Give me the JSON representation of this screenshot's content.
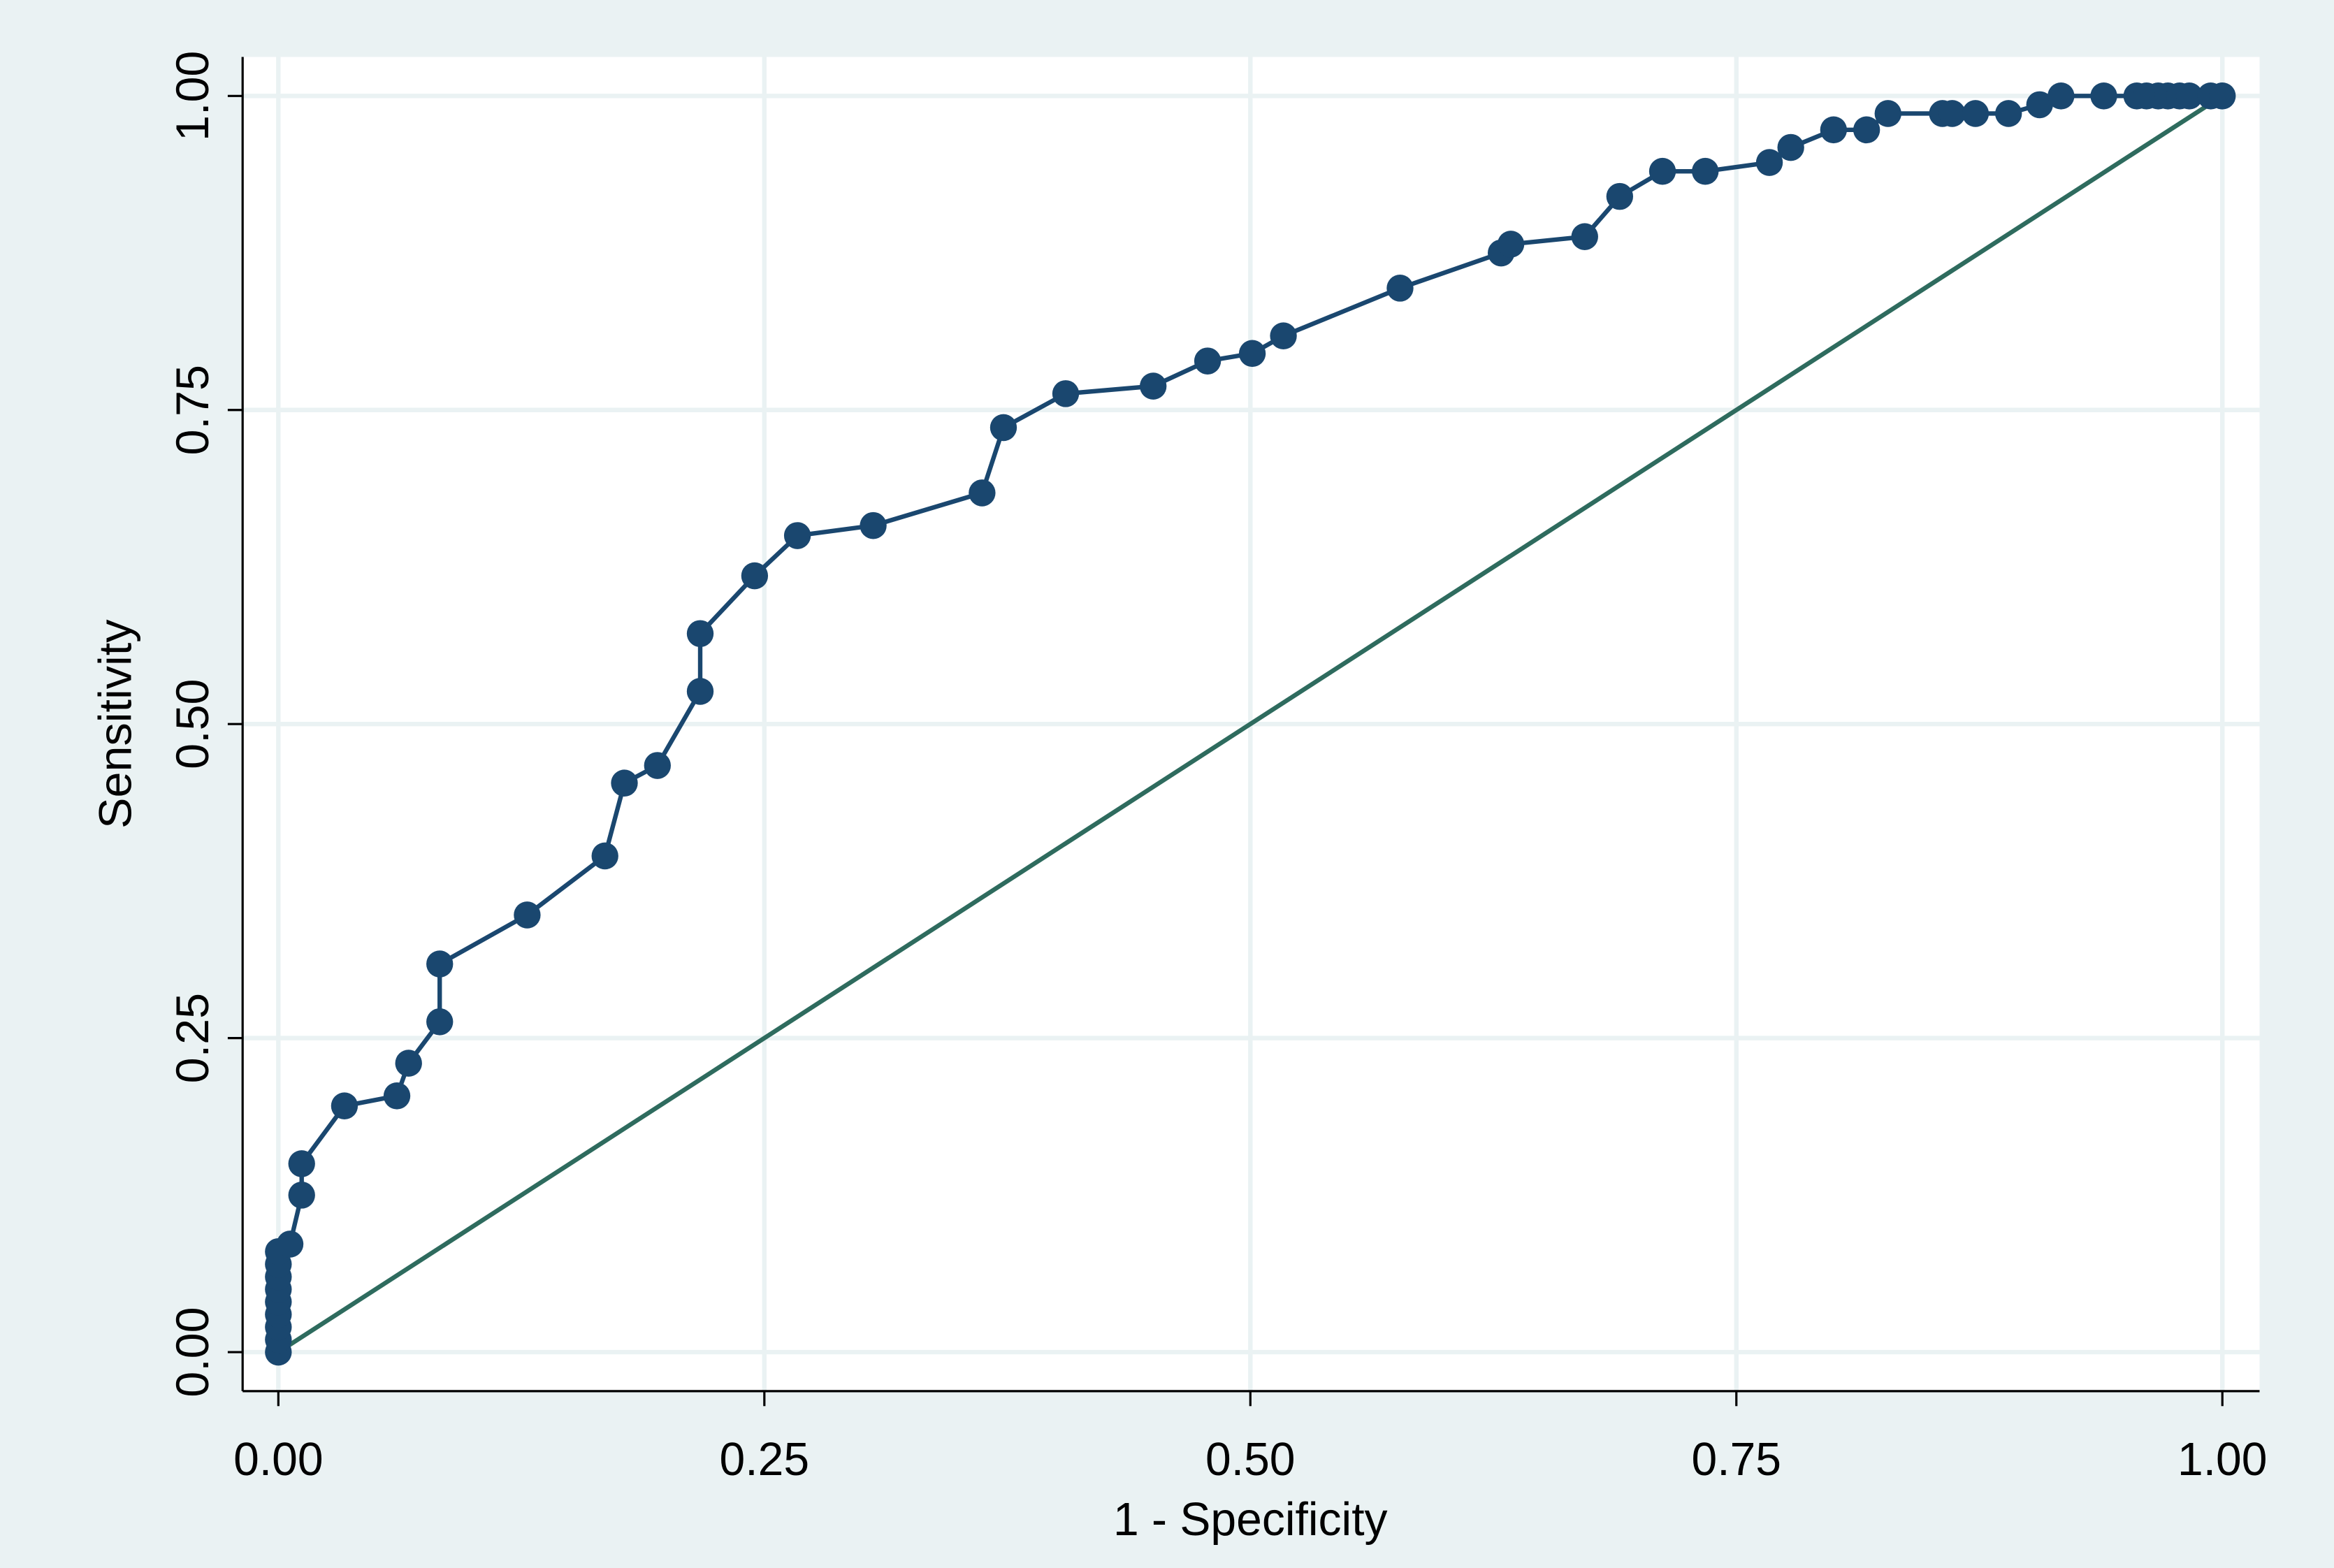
{
  "chart_data": {
    "type": "line",
    "x_label": "1 - Specificity",
    "y_label": "Sensitivity",
    "xlim": [
      0,
      1
    ],
    "ylim": [
      0,
      1
    ],
    "xticks": [
      {
        "value": 0,
        "label": "0.00"
      },
      {
        "value": 0.25,
        "label": "0.25"
      },
      {
        "value": 0.5,
        "label": "0.50"
      },
      {
        "value": 0.75,
        "label": "0.75"
      },
      {
        "value": 1,
        "label": "1.00"
      }
    ],
    "yticks": [
      {
        "value": 0,
        "label": "0.00"
      },
      {
        "value": 0.25,
        "label": "0.25"
      },
      {
        "value": 0.5,
        "label": "0.50"
      },
      {
        "value": 0.75,
        "label": "0.75"
      },
      {
        "value": 1,
        "label": "1.00"
      }
    ],
    "grid": true,
    "series": [
      {
        "color": "#1a476f",
        "markers": true,
        "x": [
          0,
          0,
          0,
          0,
          0,
          0,
          0,
          0,
          0,
          0.006,
          0.012,
          0.012,
          0.034,
          0.061,
          0.067,
          0.083,
          0.083,
          0.128,
          0.168,
          0.178,
          0.195,
          0.217,
          0.217,
          0.245,
          0.267,
          0.306,
          0.362,
          0.373,
          0.405,
          0.45,
          0.478,
          0.501,
          0.517,
          0.577,
          0.629,
          0.634,
          0.672,
          0.69,
          0.712,
          0.734,
          0.767,
          0.778,
          0.8,
          0.817,
          0.828,
          0.856,
          0.861,
          0.873,
          0.89,
          0.906,
          0.917,
          0.939,
          0.956,
          0.961,
          0.967,
          0.972,
          0.978,
          0.983,
          0.994,
          1
        ],
        "y": [
          0,
          0.01,
          0.02,
          0.03,
          0.04,
          0.05,
          0.06,
          0.07,
          0.08,
          0.086,
          0.125,
          0.15,
          0.196,
          0.204,
          0.23,
          0.263,
          0.309,
          0.348,
          0.395,
          0.453,
          0.467,
          0.526,
          0.572,
          0.618,
          0.65,
          0.658,
          0.684,
          0.736,
          0.763,
          0.769,
          0.789,
          0.795,
          0.809,
          0.847,
          0.875,
          0.882,
          0.888,
          0.92,
          0.94,
          0.94,
          0.947,
          0.959,
          0.973,
          0.973,
          0.986,
          0.986,
          0.986,
          0.986,
          0.986,
          0.993,
          1,
          1,
          1,
          1,
          1,
          1,
          1,
          1,
          1,
          1
        ]
      },
      {
        "color": "#2e6b5e",
        "markers": false,
        "x": [
          0,
          1
        ],
        "y": [
          0,
          1
        ]
      }
    ]
  }
}
